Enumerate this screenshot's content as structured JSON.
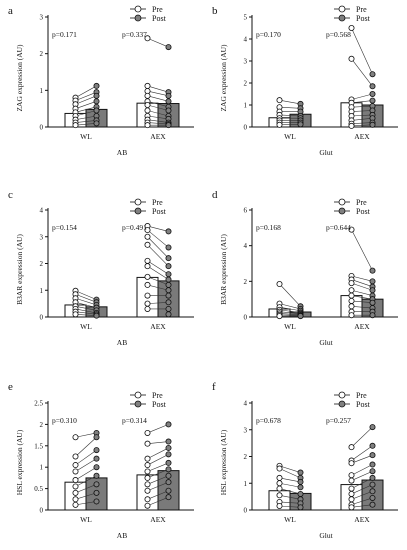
{
  "legend": {
    "pre_label": "Pre",
    "post_label": "Post",
    "pre_fill": "#ffffff",
    "post_fill": "#808080"
  },
  "colors": {
    "post_bar": "#7a7a7a",
    "pre_bar": "#ffffff",
    "outline": "#111111",
    "line": "#333333",
    "post_marker": "#808080"
  },
  "chart_data": [
    {
      "panel": "a",
      "type": "bar",
      "ylabel": "ZAG expression (AU)",
      "xlabel": "AB",
      "ylim": [
        0,
        3
      ],
      "yticks": [
        0,
        1,
        2,
        3
      ],
      "categories": [
        "WL",
        "AEX"
      ],
      "pvalues": [
        "p=0.171",
        "p=0.337"
      ],
      "series": [
        {
          "name": "Pre",
          "values": [
            0.37,
            0.65
          ]
        },
        {
          "name": "Post",
          "values": [
            0.48,
            0.64
          ]
        }
      ],
      "points": [
        {
          "pre": [
            0.8,
            0.72,
            0.62,
            0.5,
            0.4,
            0.3,
            0.2,
            0.12,
            0.05
          ],
          "post": [
            1.12,
            0.95,
            0.85,
            0.7,
            0.55,
            0.45,
            0.3,
            0.18,
            0.1
          ]
        },
        {
          "pre": [
            2.42,
            1.12,
            0.98,
            0.85,
            0.7,
            0.6,
            0.45,
            0.3,
            0.2,
            0.12,
            0.05
          ],
          "post": [
            2.18,
            0.95,
            0.85,
            0.7,
            0.55,
            0.45,
            0.3,
            0.22,
            0.12,
            0.08,
            0.05
          ]
        }
      ]
    },
    {
      "panel": "b",
      "type": "bar",
      "ylabel": "ZAG expression (AU)",
      "xlabel": "Glut",
      "ylim": [
        0,
        5
      ],
      "yticks": [
        0,
        1,
        2,
        3,
        4,
        5
      ],
      "categories": [
        "WL",
        "AEX"
      ],
      "pvalues": [
        "p=0.170",
        "p=0.568"
      ],
      "series": [
        {
          "name": "Pre",
          "values": [
            0.42,
            1.1
          ]
        },
        {
          "name": "Post",
          "values": [
            0.58,
            1.0
          ]
        }
      ],
      "points": [
        {
          "pre": [
            1.22,
            0.9,
            0.7,
            0.55,
            0.4,
            0.3,
            0.2,
            0.1
          ],
          "post": [
            1.05,
            0.85,
            0.7,
            0.5,
            0.4,
            0.3,
            0.2,
            0.12
          ]
        },
        {
          "pre": [
            4.5,
            3.1,
            1.25,
            1.1,
            0.9,
            0.7,
            0.5,
            0.3,
            0.15,
            0.05
          ],
          "post": [
            2.4,
            1.85,
            1.5,
            1.2,
            0.95,
            0.75,
            0.55,
            0.4,
            0.2,
            0.1
          ]
        }
      ]
    },
    {
      "panel": "c",
      "type": "bar",
      "ylabel": "B3AR expression (AU)",
      "xlabel": "AB",
      "ylim": [
        0,
        4
      ],
      "yticks": [
        0,
        1,
        2,
        3,
        4
      ],
      "categories": [
        "WL",
        "AEX"
      ],
      "pvalues": [
        "p=0.154",
        "p=0.491"
      ],
      "series": [
        {
          "name": "Pre",
          "values": [
            0.45,
            1.48
          ]
        },
        {
          "name": "Post",
          "values": [
            0.38,
            1.35
          ]
        }
      ],
      "points": [
        {
          "pre": [
            0.98,
            0.85,
            0.7,
            0.55,
            0.4,
            0.3,
            0.2,
            0.1
          ],
          "post": [
            0.65,
            0.55,
            0.45,
            0.35,
            0.25,
            0.15,
            0.1,
            0.05
          ]
        },
        {
          "pre": [
            3.4,
            3.25,
            3.0,
            2.7,
            2.1,
            1.9,
            1.5,
            1.2,
            0.8,
            0.5,
            0.3
          ],
          "post": [
            3.2,
            2.6,
            2.2,
            1.9,
            1.6,
            1.4,
            1.2,
            1.0,
            0.8,
            0.55,
            0.3,
            0.1
          ]
        }
      ]
    },
    {
      "panel": "d",
      "type": "bar",
      "ylabel": "B3AR expression (AU)",
      "xlabel": "Glut",
      "ylim": [
        0,
        6
      ],
      "yticks": [
        0,
        2,
        4,
        6
      ],
      "categories": [
        "WL",
        "AEX"
      ],
      "pvalues": [
        "p=0.168",
        "p=0.644"
      ],
      "series": [
        {
          "name": "Pre",
          "values": [
            0.45,
            1.2
          ]
        },
        {
          "name": "Post",
          "values": [
            0.28,
            1.0
          ]
        }
      ],
      "points": [
        {
          "pre": [
            1.85,
            0.75,
            0.55,
            0.4,
            0.3,
            0.2,
            0.12,
            0.05
          ],
          "post": [
            0.6,
            0.45,
            0.35,
            0.25,
            0.18,
            0.12,
            0.08,
            0.05
          ]
        },
        {
          "pre": [
            4.9,
            2.3,
            2.1,
            1.9,
            1.5,
            1.2,
            0.9,
            0.6,
            0.3,
            0.1
          ],
          "post": [
            2.6,
            2.0,
            1.7,
            1.5,
            1.2,
            1.0,
            0.8,
            0.5,
            0.3,
            0.1
          ]
        }
      ]
    },
    {
      "panel": "e",
      "type": "bar",
      "ylabel": "HSL expression (AU)",
      "xlabel": "AB",
      "ylim": [
        0,
        2.5
      ],
      "yticks": [
        0.0,
        0.5,
        1.0,
        1.5,
        2.0,
        2.5
      ],
      "categories": [
        "WL",
        "AEX"
      ],
      "pvalues": [
        "p=0.310",
        "p=0.314"
      ],
      "series": [
        {
          "name": "Pre",
          "values": [
            0.65,
            0.82
          ]
        },
        {
          "name": "Post",
          "values": [
            0.75,
            0.92
          ]
        }
      ],
      "points": [
        {
          "pre": [
            1.7,
            1.25,
            1.05,
            0.9,
            0.7,
            0.55,
            0.4,
            0.25,
            0.12
          ],
          "post": [
            1.8,
            1.7,
            1.4,
            1.2,
            1.0,
            0.8,
            0.6,
            0.4,
            0.2
          ]
        },
        {
          "pre": [
            1.8,
            1.55,
            1.2,
            1.05,
            0.9,
            0.75,
            0.6,
            0.45,
            0.25,
            0.1
          ],
          "post": [
            2.0,
            1.6,
            1.45,
            1.3,
            1.1,
            0.95,
            0.8,
            0.65,
            0.45,
            0.3
          ]
        }
      ]
    },
    {
      "panel": "f",
      "type": "bar",
      "ylabel": "HSL expression (AU)",
      "xlabel": "Glut",
      "ylim": [
        0,
        4
      ],
      "yticks": [
        0,
        1,
        2,
        3,
        4
      ],
      "categories": [
        "WL",
        "AEX"
      ],
      "pvalues": [
        "p=0.678",
        "p=0.257"
      ],
      "series": [
        {
          "name": "Pre",
          "values": [
            0.72,
            0.95
          ]
        },
        {
          "name": "Post",
          "values": [
            0.62,
            1.12
          ]
        }
      ],
      "points": [
        {
          "pre": [
            1.65,
            1.55,
            1.2,
            1.0,
            0.8,
            0.55,
            0.3,
            0.15
          ],
          "post": [
            1.4,
            1.2,
            1.05,
            0.85,
            0.6,
            0.4,
            0.25,
            0.1
          ]
        },
        {
          "pre": [
            2.35,
            1.85,
            1.75,
            1.3,
            1.1,
            0.8,
            0.6,
            0.4,
            0.2,
            0.1
          ],
          "post": [
            3.1,
            2.4,
            2.05,
            1.7,
            1.45,
            1.2,
            0.95,
            0.7,
            0.45,
            0.2
          ]
        }
      ]
    }
  ]
}
